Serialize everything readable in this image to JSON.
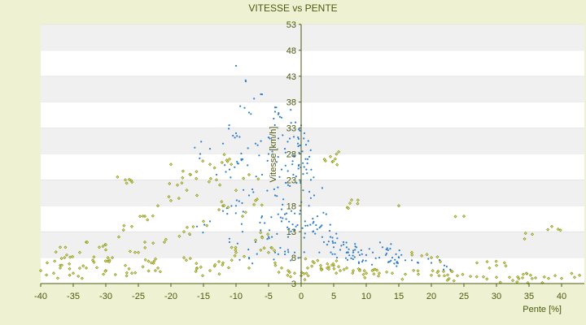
{
  "chart_data": {
    "type": "scatter",
    "title": "VITESSE vs PENTE",
    "xlabel": "Pente [%]",
    "ylabel": "Vitesse [km/h]",
    "xlim": [
      -40,
      43
    ],
    "ylim": [
      3,
      53
    ],
    "xticks": [
      "-40",
      "-35",
      "-30",
      "-25",
      "-20",
      "-15",
      "-10",
      "-5",
      "0",
      "5",
      "10",
      "15",
      "20",
      "25",
      "30",
      "35",
      "40"
    ],
    "yticks": [
      "3",
      "8",
      "13",
      "18",
      "23",
      "28",
      "33",
      "38",
      "43",
      "48",
      "53"
    ],
    "grid": "horizontal alternating bands",
    "colors": {
      "background": "#eef2d2",
      "plot_area": "#ffffff",
      "band": "#f0f0f0",
      "axis": "#4a5a10",
      "text": "#4a5a10",
      "series_blue": "#2f7fcf",
      "series_olive": "#7a8a10",
      "series_olive_fill": "#e8e070"
    },
    "series": [
      {
        "name": "",
        "color": "#2f7fcf",
        "marker": "small dot",
        "values": [
          [
            -10,
            45
          ],
          [
            -8.5,
            42
          ],
          [
            -6,
            39.5
          ],
          [
            -8,
            36
          ],
          [
            -4,
            37
          ],
          [
            -3,
            35
          ],
          [
            -10,
            32
          ],
          [
            -12,
            30
          ],
          [
            -14,
            29
          ],
          [
            -15.5,
            28
          ],
          [
            -7,
            30
          ],
          [
            -5,
            28
          ],
          [
            -9,
            27
          ],
          [
            -11,
            25
          ],
          [
            -13,
            24
          ],
          [
            -6,
            24
          ],
          [
            -3,
            25
          ],
          [
            -2,
            22
          ],
          [
            -4,
            20
          ],
          [
            -8,
            20
          ],
          [
            -10,
            18
          ],
          [
            -12,
            17
          ],
          [
            -14,
            15
          ],
          [
            -16,
            14
          ],
          [
            -6,
            16
          ],
          [
            -3,
            15
          ],
          [
            -1.5,
            17
          ],
          [
            -5,
            12
          ],
          [
            -7,
            11
          ],
          [
            -9,
            13
          ],
          [
            -11,
            11
          ],
          [
            -2,
            12
          ],
          [
            -4,
            9
          ],
          [
            -8,
            8
          ],
          [
            -1,
            9
          ],
          [
            0,
            33.5
          ],
          [
            0.5,
            32
          ],
          [
            -0.5,
            30
          ],
          [
            0.2,
            28.5
          ],
          [
            1,
            27
          ],
          [
            -1,
            27.5
          ],
          [
            0.8,
            25
          ],
          [
            1.5,
            23
          ],
          [
            2,
            20
          ],
          [
            0.3,
            21
          ],
          [
            1.2,
            18
          ],
          [
            2.5,
            16
          ],
          [
            3,
            14
          ],
          [
            1.8,
            13
          ],
          [
            3.5,
            11
          ],
          [
            4,
            10.5
          ],
          [
            5,
            10
          ],
          [
            6,
            9.5
          ],
          [
            7,
            9
          ],
          [
            8,
            9
          ],
          [
            9,
            8.5
          ],
          [
            10,
            8.5
          ],
          [
            11,
            9
          ],
          [
            12,
            8
          ],
          [
            13,
            8.5
          ],
          [
            14,
            8
          ],
          [
            15,
            8
          ],
          [
            16,
            7.5
          ],
          [
            17,
            7.5
          ],
          [
            18,
            7
          ],
          [
            20,
            7
          ],
          [
            22,
            6.5
          ],
          [
            4.5,
            12
          ],
          [
            6.5,
            11
          ],
          [
            8.5,
            10
          ],
          [
            2.8,
            9
          ],
          [
            5.5,
            8
          ],
          [
            9.5,
            7.5
          ],
          [
            12.5,
            10
          ],
          [
            -0.8,
            14
          ],
          [
            0.6,
            15
          ],
          [
            -1.2,
            24
          ],
          [
            -2.5,
            29
          ],
          [
            1.1,
            30.5
          ],
          [
            -0.2,
            32.5
          ],
          [
            0.4,
            31
          ],
          [
            -3.5,
            31
          ]
        ]
      },
      {
        "name": "",
        "color": "#7a8a10",
        "marker": "small diamond",
        "values": [
          [
            -40,
            5.5
          ],
          [
            -39,
            7
          ],
          [
            -38,
            5
          ],
          [
            -37,
            6
          ],
          [
            -36,
            8.5
          ],
          [
            -35,
            5
          ],
          [
            -34,
            9
          ],
          [
            -33,
            6
          ],
          [
            -32,
            7.5
          ],
          [
            -31,
            10
          ],
          [
            -30,
            5.5
          ],
          [
            -29,
            8
          ],
          [
            -28,
            12
          ],
          [
            -27,
            6.5
          ],
          [
            -26,
            14
          ],
          [
            -25,
            9
          ],
          [
            -24,
            16
          ],
          [
            -23,
            7
          ],
          [
            -22,
            18
          ],
          [
            -21,
            11
          ],
          [
            -20,
            19
          ],
          [
            -19,
            22
          ],
          [
            -18,
            13
          ],
          [
            -17,
            24
          ],
          [
            -16,
            20
          ],
          [
            -15,
            15
          ],
          [
            -14,
            26
          ],
          [
            -13,
            23
          ],
          [
            -12,
            18
          ],
          [
            -11,
            27
          ],
          [
            -10,
            21
          ],
          [
            -9,
            16
          ],
          [
            -8,
            24
          ],
          [
            -7,
            19
          ],
          [
            -6,
            12
          ],
          [
            -5,
            9
          ],
          [
            -4,
            7
          ],
          [
            -3,
            6
          ],
          [
            -2,
            5.5
          ],
          [
            -1,
            5
          ],
          [
            0,
            4.5
          ],
          [
            -27,
            23
          ],
          [
            -20,
            26
          ],
          [
            -24,
            11
          ],
          [
            -18,
            8
          ],
          [
            -16,
            6
          ],
          [
            -14,
            5.5
          ],
          [
            -12,
            7
          ],
          [
            -30,
            9.5
          ],
          [
            -33,
            11
          ],
          [
            -37,
            10
          ],
          [
            -26,
            5
          ],
          [
            -22,
            6
          ],
          [
            -10,
            9
          ],
          [
            -8,
            6
          ],
          [
            1,
            6
          ],
          [
            2,
            7
          ],
          [
            3,
            6.5
          ],
          [
            4,
            6
          ],
          [
            5,
            6.5
          ],
          [
            6,
            5.5
          ],
          [
            7,
            6
          ],
          [
            8,
            5.5
          ],
          [
            9,
            5.5
          ],
          [
            10,
            5
          ],
          [
            12,
            5
          ],
          [
            14,
            5
          ],
          [
            16,
            4.8
          ],
          [
            18,
            4.8
          ],
          [
            20,
            4.6
          ],
          [
            22,
            4.5
          ],
          [
            24,
            4.5
          ],
          [
            26,
            4.4
          ],
          [
            28,
            4.3
          ],
          [
            30,
            4.2
          ],
          [
            32,
            4.2
          ],
          [
            34,
            4.1
          ],
          [
            36,
            4.1
          ],
          [
            38,
            4
          ],
          [
            40,
            4
          ],
          [
            42,
            4.2
          ],
          [
            4.5,
            27.5
          ],
          [
            4.8,
            26.5
          ],
          [
            7.5,
            18.5
          ],
          [
            15,
            18
          ],
          [
            25,
            16
          ],
          [
            35.5,
            12.5
          ],
          [
            38.5,
            14
          ],
          [
            20,
            8
          ],
          [
            30,
            6.5
          ],
          [
            27,
            7
          ],
          [
            17,
            9
          ]
        ]
      }
    ]
  }
}
